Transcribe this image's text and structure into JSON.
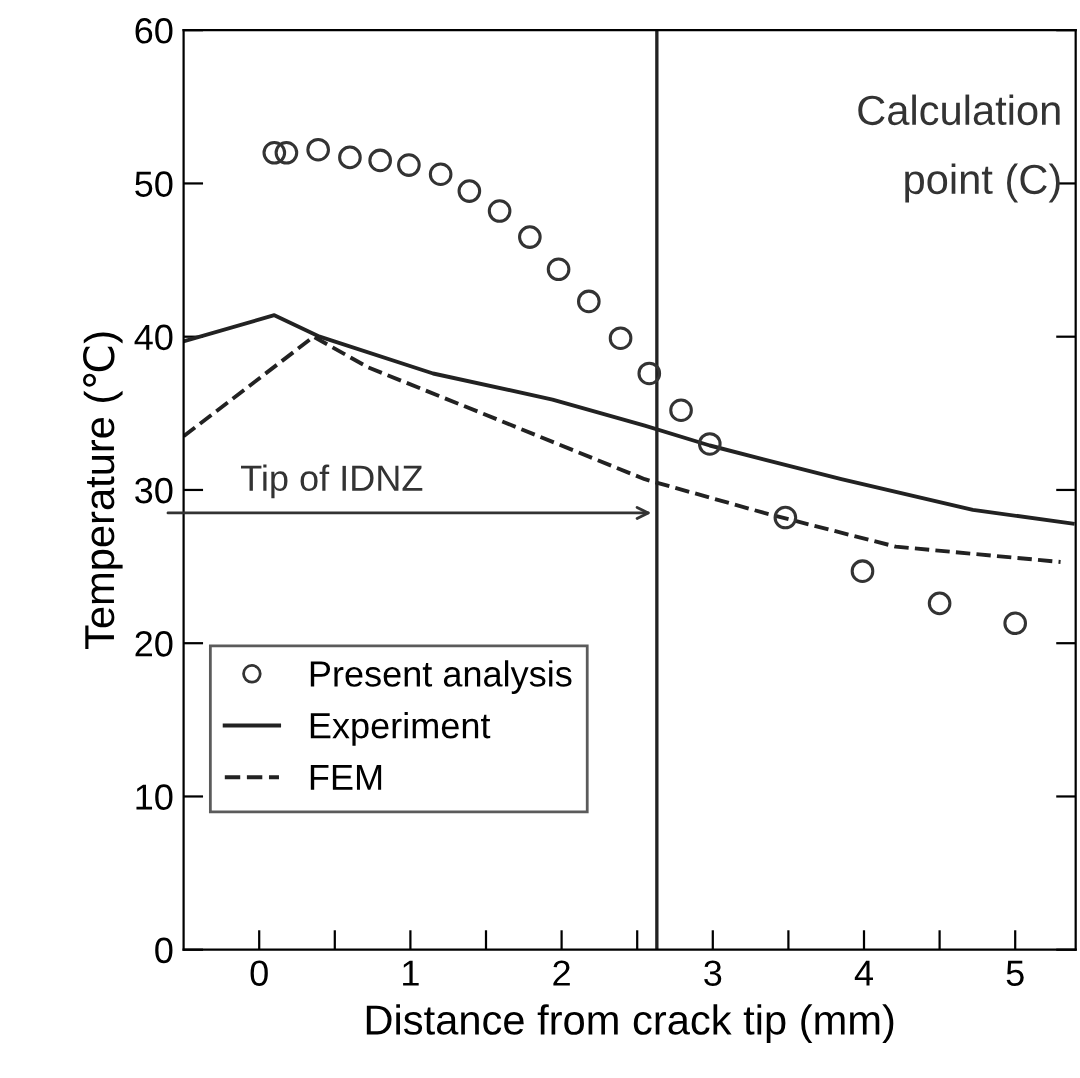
{
  "chart_data": {
    "type": "line",
    "xlabel": "Distance from crack tip (mm)",
    "ylabel": "Temperature (℃)",
    "xlim": [
      -0.5,
      5.4
    ],
    "ylim": [
      0,
      60
    ],
    "xticks": [
      0,
      {
        "value": 0.5,
        "label": null
      },
      1,
      {
        "value": 1.5,
        "label": null
      },
      2,
      {
        "value": 2.5,
        "label": null
      },
      3,
      {
        "value": 3.5,
        "label": null
      },
      4,
      {
        "value": 4.5,
        "label": null
      },
      5
    ],
    "yticks": [
      0,
      10,
      20,
      30,
      40,
      50,
      60
    ],
    "grid": false,
    "legend": "bottom left",
    "series": [
      {
        "name": "Present analysis",
        "type": "scatter",
        "marker": "circle",
        "color": "#333333",
        "x": [
          0.1,
          0.18,
          0.39,
          0.6,
          0.8,
          0.99,
          1.2,
          1.39,
          1.59,
          1.79,
          1.98,
          2.18,
          2.39,
          2.58,
          2.79,
          2.98,
          3.48,
          3.99,
          4.5,
          5.0
        ],
        "values": [
          52.0,
          52.0,
          52.2,
          51.7,
          51.5,
          51.2,
          50.6,
          49.5,
          48.2,
          46.5,
          44.4,
          42.3,
          39.9,
          37.6,
          35.2,
          33.0,
          28.2,
          24.7,
          22.6,
          21.3
        ]
      },
      {
        "name": "Experiment",
        "line_style": "solid",
        "color": "#222222",
        "x": [
          -0.5,
          0.1,
          0.4,
          1.15,
          1.94,
          2.55,
          2.98,
          3.85,
          4.72,
          5.38
        ],
        "values": [
          39.7,
          41.4,
          40.0,
          37.6,
          35.9,
          34.2,
          32.9,
          30.7,
          28.7,
          27.8
        ]
      },
      {
        "name": "FEM",
        "line_style": "dashed",
        "color": "#222222",
        "x": [
          -0.5,
          0.36,
          0.72,
          1.6,
          2.55,
          3.34,
          4.21,
          5.3
        ],
        "values": [
          33.5,
          40.0,
          38.0,
          34.5,
          30.7,
          28.5,
          26.3,
          25.3
        ]
      }
    ],
    "ref_lines": [
      {
        "axis": "x",
        "value": 2.63,
        "color": "#222222"
      }
    ],
    "annotations": [
      "Tip of IDNZ",
      "Calculation\npoint (C)"
    ]
  }
}
